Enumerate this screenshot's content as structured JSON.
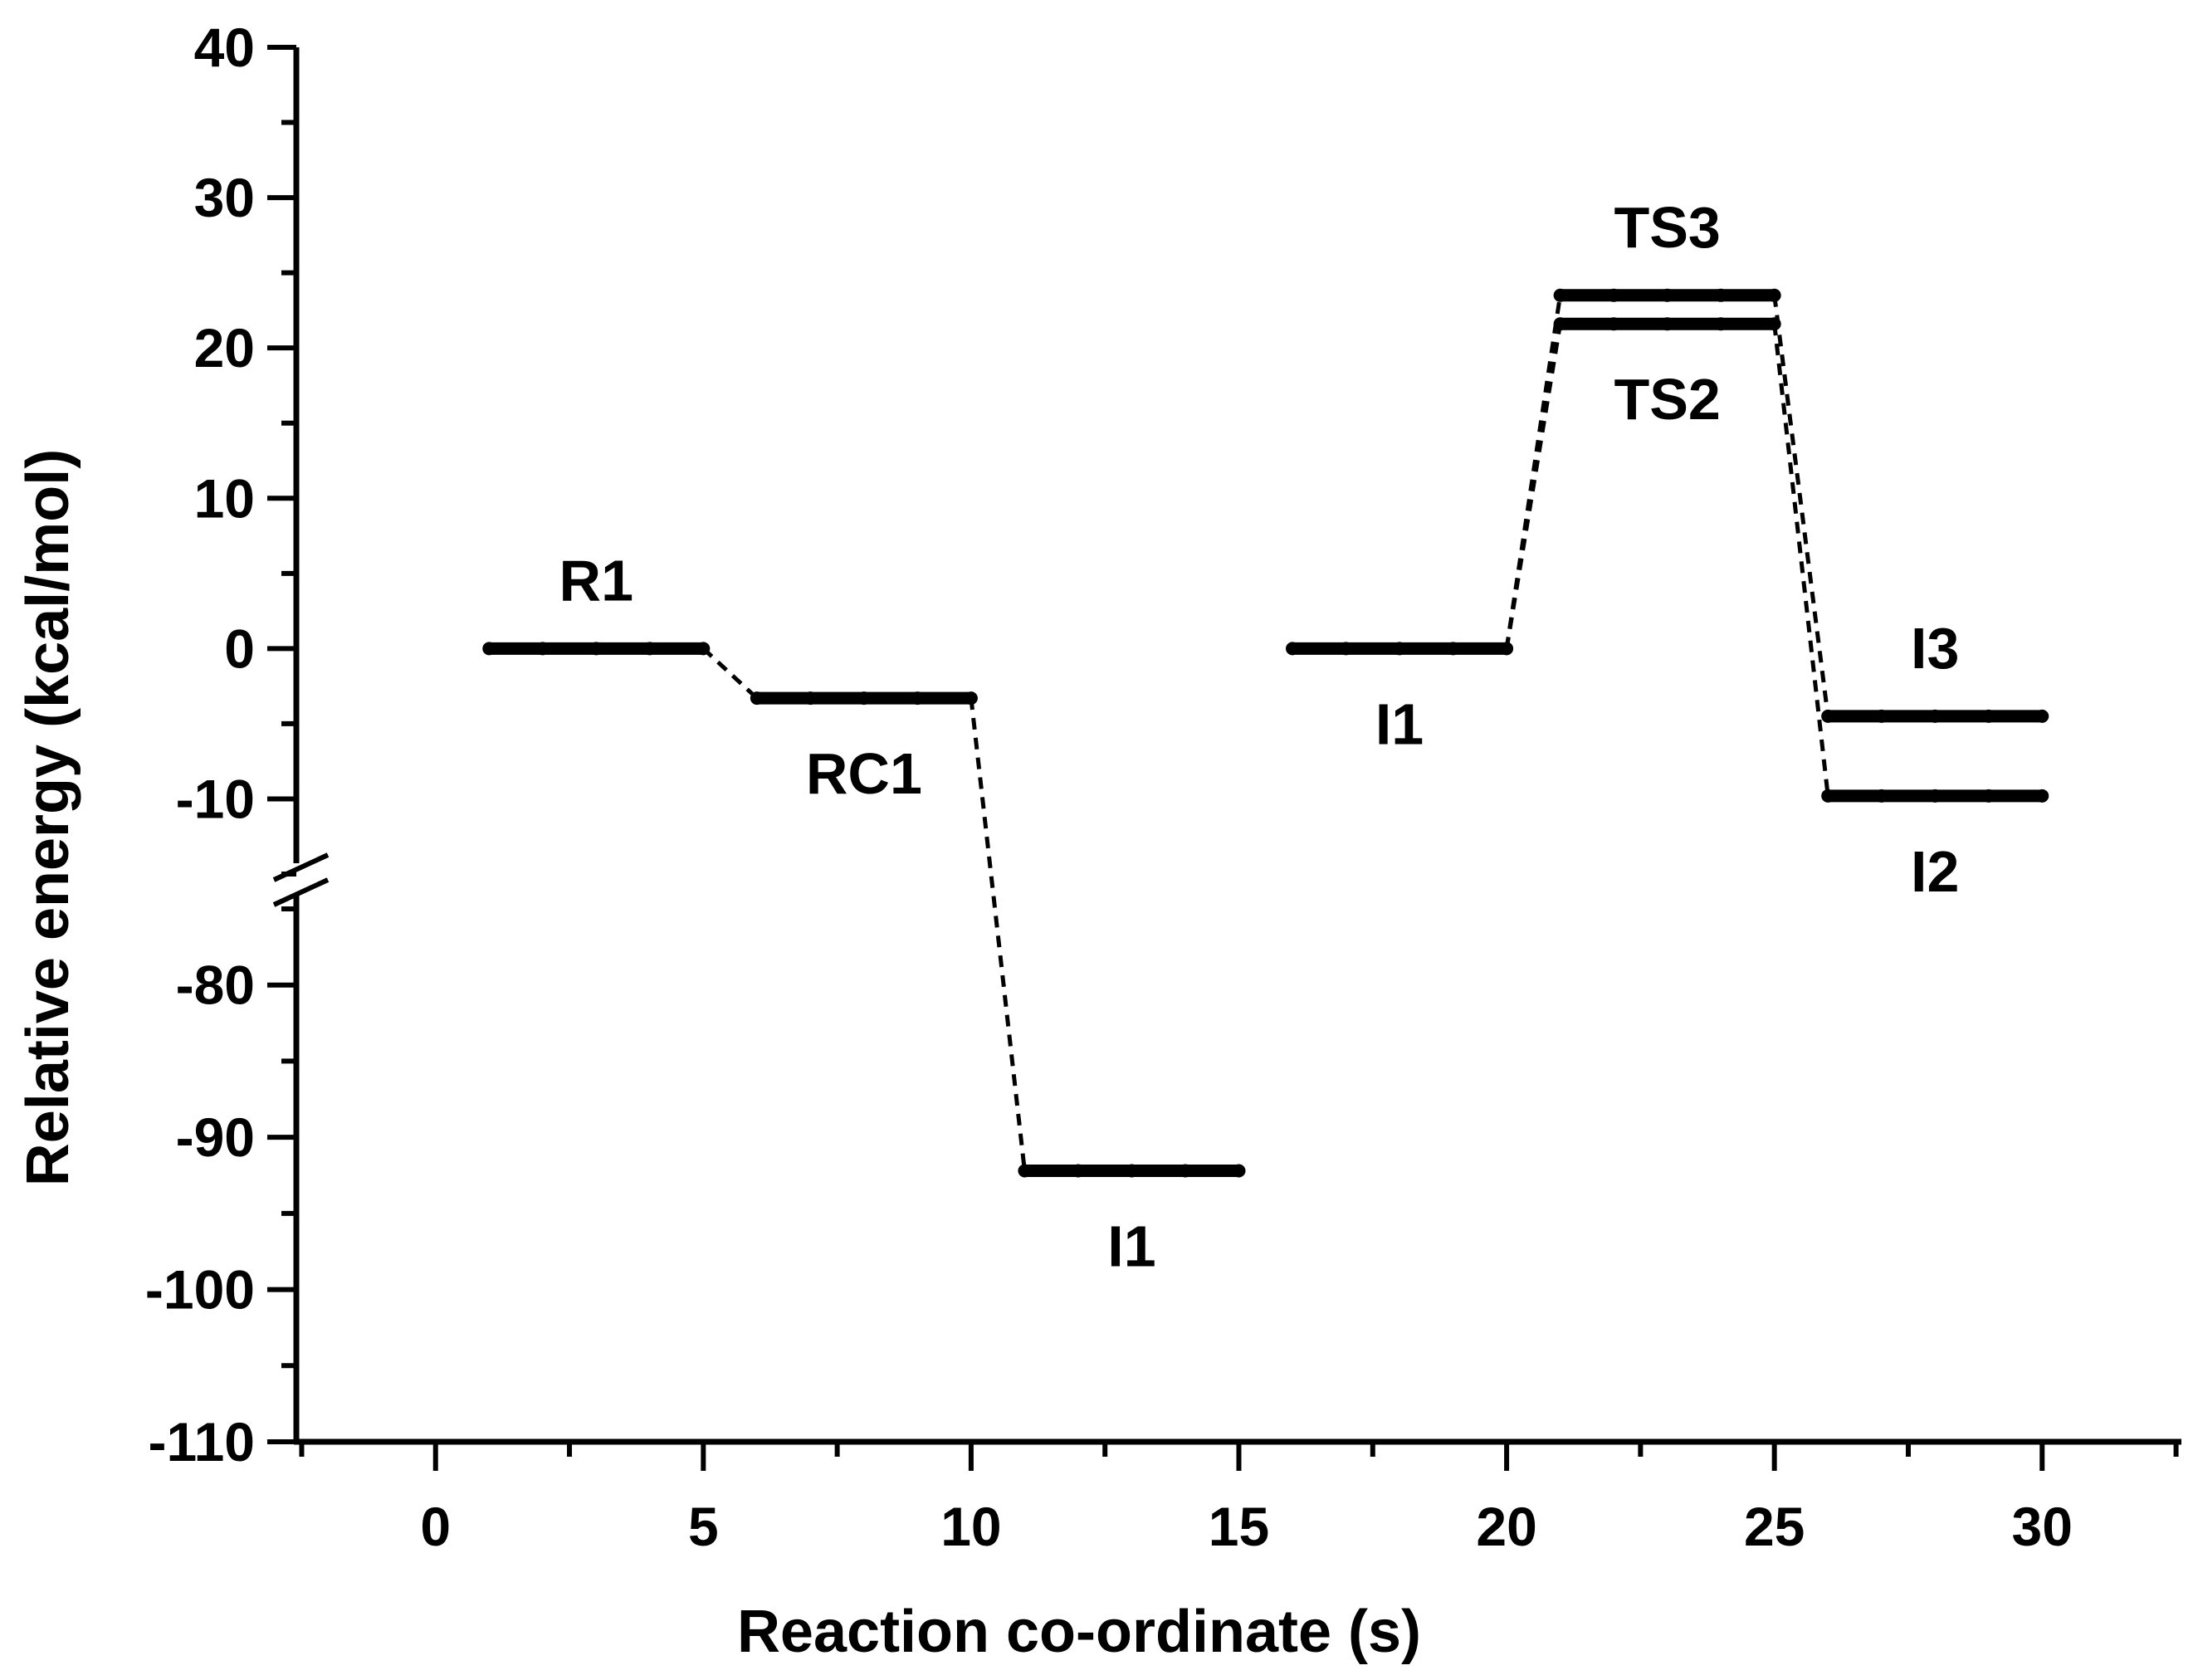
{
  "chart_data": {
    "type": "line",
    "title": "",
    "xlabel": "Reaction co-ordinate (s)",
    "ylabel": "Relative energy (kcal/mol)",
    "xlim": [
      -2.6,
      32.6
    ],
    "ylim": [
      -110,
      40
    ],
    "y_axis_break": {
      "lower_range": [
        -110,
        -75
      ],
      "upper_range": [
        -15,
        40
      ]
    },
    "x_ticks": [
      "0",
      "5",
      "10",
      "15",
      "20",
      "25",
      "30"
    ],
    "y_ticks": [
      "40",
      "30",
      "20",
      "10",
      "0",
      "-10",
      "-80",
      "-90",
      "-100",
      "-110"
    ],
    "grid": false,
    "legend": "none",
    "levels": [
      {
        "label": "R1",
        "x_start": 1,
        "x_end": 5,
        "energy": 0.0,
        "label_position": "above"
      },
      {
        "label": "RC1",
        "x_start": 6,
        "x_end": 10,
        "energy": -3.3,
        "label_position": "below"
      },
      {
        "label": "I1",
        "x_start": 11,
        "x_end": 15,
        "energy": -92.2,
        "label_position": "below"
      },
      {
        "label": "I1",
        "x_start": 16,
        "x_end": 20,
        "energy": 0.0,
        "label_position": "below"
      },
      {
        "label": "TS3",
        "x_start": 21,
        "x_end": 25,
        "energy": 23.5,
        "label_position": "above"
      },
      {
        "label": "TS2",
        "x_start": 21,
        "x_end": 25,
        "energy": 21.6,
        "label_position": "below"
      },
      {
        "label": "I3",
        "x_start": 26,
        "x_end": 30,
        "energy": -4.5,
        "label_position": "above"
      },
      {
        "label": "I2",
        "x_start": 26,
        "x_end": 30,
        "energy": -9.8,
        "label_position": "below"
      }
    ],
    "connectors": [
      {
        "from": 0,
        "to": 1
      },
      {
        "from": 1,
        "to": 2
      },
      {
        "from": 3,
        "to": 4
      },
      {
        "from": 3,
        "to": 5
      },
      {
        "from": 4,
        "to": 6
      },
      {
        "from": 5,
        "to": 7
      }
    ]
  }
}
